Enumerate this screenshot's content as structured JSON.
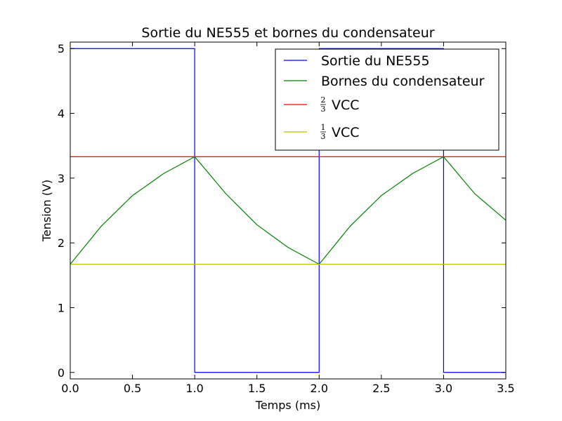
{
  "chart_data": {
    "type": "line",
    "title": "Sortie du NE555 et bornes du condensateur",
    "xlabel": "Temps (ms)",
    "ylabel": "Tension (V)",
    "xlim": [
      0.0,
      3.5
    ],
    "ylim": [
      -0.1,
      5.1
    ],
    "xticks": [
      "0.0",
      "0.5",
      "1.0",
      "1.5",
      "2.0",
      "2.5",
      "3.0",
      "3.5"
    ],
    "yticks": [
      "0",
      "1",
      "2",
      "3",
      "4",
      "5"
    ],
    "grid": false,
    "legend_position": "top-right",
    "series": [
      {
        "name": "Sortie du NE555",
        "color": "#0000ff",
        "x": [
          0.0,
          1.0,
          1.0,
          2.0,
          2.0,
          3.0,
          3.0,
          3.5
        ],
        "y": [
          5.0,
          5.0,
          0.0,
          0.0,
          5.0,
          5.0,
          0.0,
          0.0
        ]
      },
      {
        "name": "Bornes du condensateur",
        "color": "#008000",
        "x": [
          0.0,
          0.25,
          0.5,
          0.75,
          1.0,
          1.25,
          1.5,
          1.75,
          2.0,
          2.25,
          2.5,
          2.75,
          3.0,
          3.25,
          3.5
        ],
        "y": [
          1.67,
          2.26,
          2.73,
          3.07,
          3.33,
          2.76,
          2.28,
          1.93,
          1.67,
          2.26,
          2.73,
          3.07,
          3.33,
          2.76,
          2.35
        ]
      },
      {
        "name": "VCC",
        "fraction": {
          "num": "2",
          "den": "3"
        },
        "color": "#ff0000",
        "x": [
          0.0,
          3.5
        ],
        "y": [
          3.33,
          3.33
        ]
      },
      {
        "name": "VCC",
        "fraction": {
          "num": "1",
          "den": "3"
        },
        "color": "#bfbf00",
        "x": [
          0.0,
          3.5
        ],
        "y": [
          1.67,
          1.67
        ]
      }
    ]
  }
}
